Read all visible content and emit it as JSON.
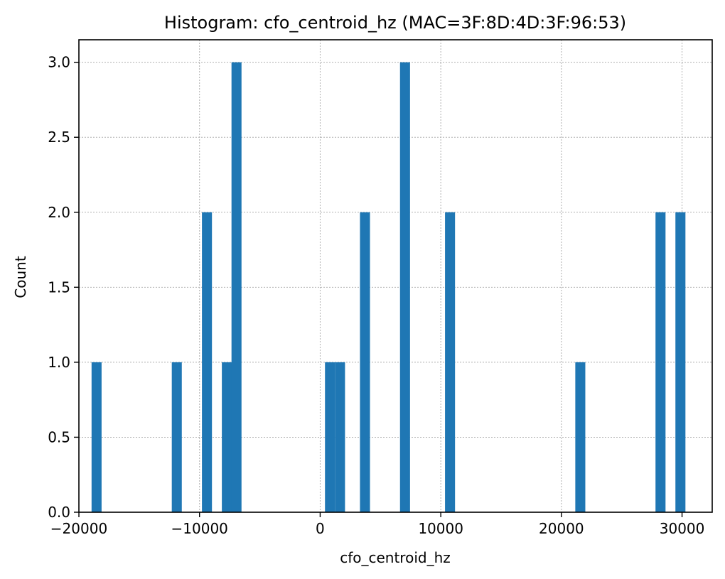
{
  "chart_data": {
    "type": "bar",
    "title": "Histogram: cfo_centroid_hz (MAC=3F:8D:4D:3F:96:53)",
    "xlabel": "cfo_centroid_hz",
    "ylabel": "Count",
    "xlim": [
      -20000,
      32500
    ],
    "ylim": [
      0,
      3.15
    ],
    "grid": true,
    "bar_color": "#1f77b4",
    "bin_width": 830,
    "xticks": [
      -20000,
      -10000,
      0,
      10000,
      20000,
      30000
    ],
    "xtick_labels": [
      "−20000",
      "−10000",
      "0",
      "10000",
      "20000",
      "30000"
    ],
    "yticks": [
      0.0,
      0.5,
      1.0,
      1.5,
      2.0,
      2.5,
      3.0
    ],
    "ytick_labels": [
      "0.0",
      "0.5",
      "1.0",
      "1.5",
      "2.0",
      "2.5",
      "3.0"
    ],
    "bins": [
      {
        "x_start": -18950,
        "count": 1
      },
      {
        "x_start": -12300,
        "count": 1
      },
      {
        "x_start": -9800,
        "count": 2
      },
      {
        "x_start": -8150,
        "count": 1
      },
      {
        "x_start": -7350,
        "count": 3
      },
      {
        "x_start": 400,
        "count": 1
      },
      {
        "x_start": 1230,
        "count": 1
      },
      {
        "x_start": 3300,
        "count": 2
      },
      {
        "x_start": 6620,
        "count": 3
      },
      {
        "x_start": 10350,
        "count": 2
      },
      {
        "x_start": 21150,
        "count": 1
      },
      {
        "x_start": 27800,
        "count": 2
      },
      {
        "x_start": 29450,
        "count": 2
      }
    ]
  }
}
